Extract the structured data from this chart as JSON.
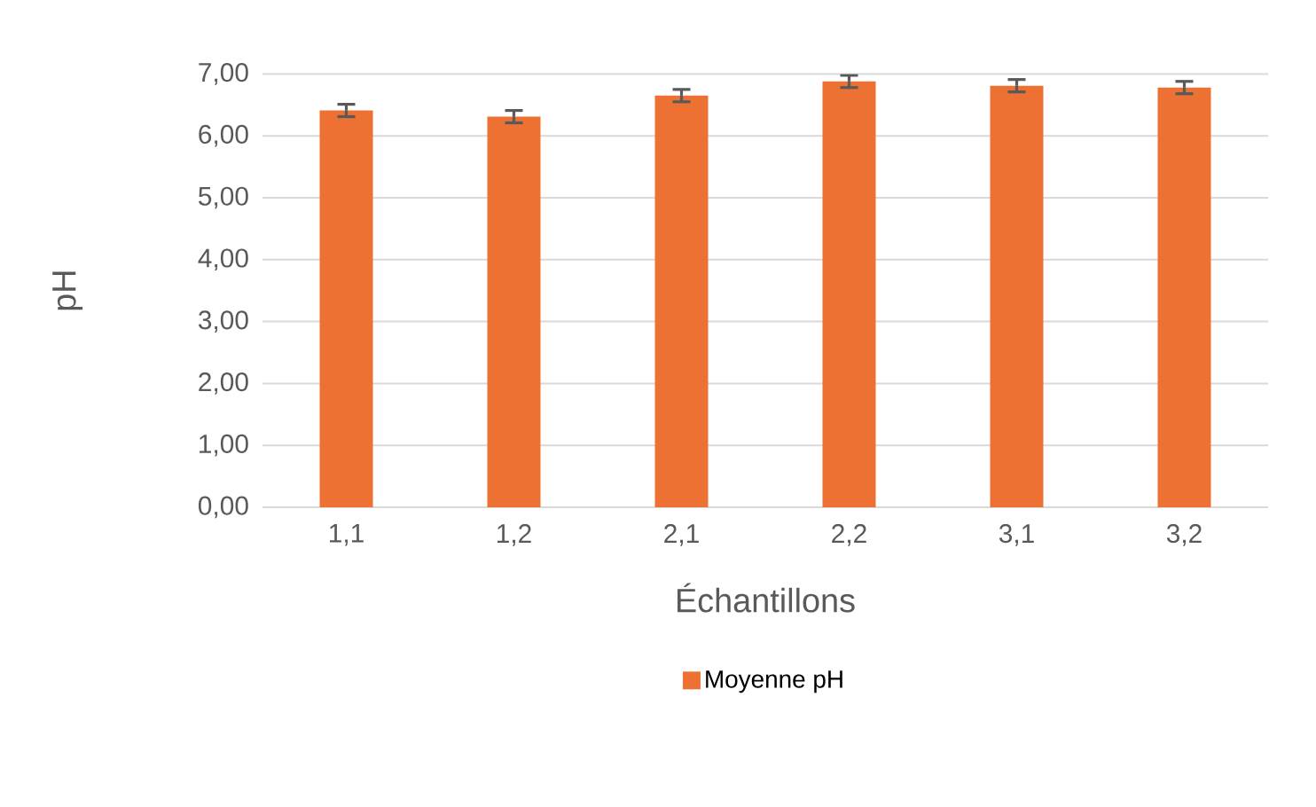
{
  "chart_data": {
    "type": "bar",
    "xlabel": "Échantillons",
    "ylabel": "pH",
    "categories": [
      "1,1",
      "1,2",
      "2,1",
      "2,2",
      "3,1",
      "3,2"
    ],
    "series": [
      {
        "name": "Moyenne pH",
        "color": "#ed7132",
        "values": [
          6.41,
          6.31,
          6.65,
          6.88,
          6.81,
          6.78
        ],
        "errors": [
          0.1,
          0.1,
          0.1,
          0.1,
          0.1,
          0.1
        ]
      }
    ],
    "ylim": [
      0,
      7
    ],
    "yticks": [
      {
        "value": 0,
        "label": "0,00"
      },
      {
        "value": 1,
        "label": "1,00"
      },
      {
        "value": 2,
        "label": "2,00"
      },
      {
        "value": 3,
        "label": "3,00"
      },
      {
        "value": 4,
        "label": "4,00"
      },
      {
        "value": 5,
        "label": "5,00"
      },
      {
        "value": 6,
        "label": "6,00"
      },
      {
        "value": 7,
        "label": "7,00"
      }
    ],
    "grid": "y",
    "legend": "bottom"
  }
}
